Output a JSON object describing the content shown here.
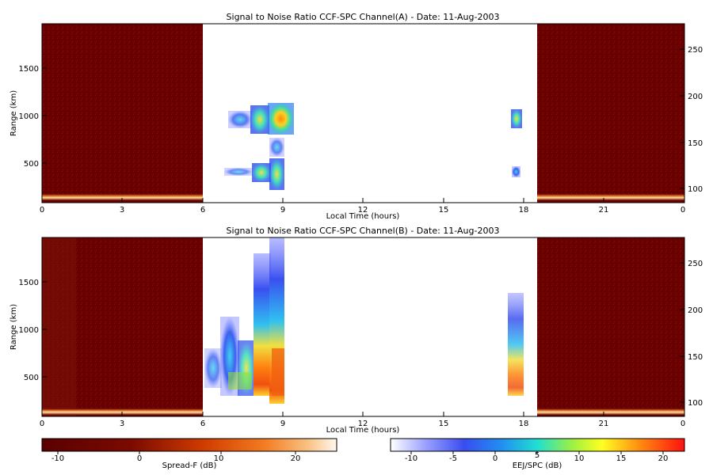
{
  "panels": [
    {
      "id": "A",
      "title": "Signal to Noise Ratio CCF-SPC Channel(A) - Date: 11-Aug-2003",
      "xlabel": "Local Time (hours)",
      "ylabel": "Range (km)",
      "x_ticks": [
        "0",
        "3",
        "6",
        "9",
        "12",
        "15",
        "18",
        "21",
        "0"
      ],
      "y_ticks_left": [
        "500",
        "1000",
        "1500"
      ],
      "y_ticks_right": [
        "100",
        "150",
        "200",
        "250"
      ]
    },
    {
      "id": "B",
      "title": "Signal to Noise Ratio CCF-SPC Channel(B) - Date: 11-Aug-2003",
      "xlabel": "Local Time (hours)",
      "ylabel": "Range (km)",
      "x_ticks": [
        "0",
        "3",
        "6",
        "9",
        "12",
        "15",
        "18",
        "21",
        "0"
      ],
      "y_ticks_left": [
        "500",
        "1000",
        "1500"
      ],
      "y_ticks_right": [
        "100",
        "150",
        "200",
        "250"
      ]
    }
  ],
  "colorbars": [
    {
      "label": "Spread-F (dB)",
      "ticks": [
        "-10",
        "0",
        "10",
        "20"
      ],
      "range": [
        -13,
        23
      ]
    },
    {
      "label": "EEJ/SPC (dB)",
      "ticks": [
        "-10",
        "-5",
        "0",
        "5",
        "10",
        "15",
        "20"
      ],
      "range": [
        -13,
        22
      ]
    }
  ],
  "chart_data": [
    {
      "type": "heatmap",
      "title": "Signal to Noise Ratio CCF-SPC Channel(A) - Date: 11-Aug-2003",
      "xlabel": "Local Time (hours)",
      "ylabel": "Range (km)",
      "xlim": [
        0,
        24
      ],
      "ylim_left": [
        70,
        1960
      ],
      "ylim_right": [
        87,
        280
      ],
      "x_tick_labels": [
        "0",
        "3",
        "6",
        "9",
        "12",
        "15",
        "18",
        "21",
        "0"
      ],
      "nighttime_spread_f_hours": [
        [
          0,
          6
        ],
        [
          18.5,
          24
        ]
      ],
      "echo_regions": [
        {
          "t_start": 6.9,
          "t_end": 9.4,
          "range_from_km": 750,
          "range_to_km": 1150,
          "peak_snr_db": 14
        },
        {
          "t_start": 6.9,
          "t_end": 9.0,
          "range_from_km": 250,
          "range_to_km": 650,
          "peak_snr_db": 7
        },
        {
          "t_start": 17.7,
          "t_end": 17.9,
          "range_from_km": 900,
          "range_to_km": 1050,
          "peak_snr_db": 5
        },
        {
          "t_start": 17.7,
          "t_end": 17.9,
          "range_from_km": 330,
          "range_to_km": 430,
          "peak_snr_db": 0
        }
      ],
      "colorbar": "EEJ/SPC (dB)"
    },
    {
      "type": "heatmap",
      "title": "Signal to Noise Ratio CCF-SPC Channel(B) - Date: 11-Aug-2003",
      "xlabel": "Local Time (hours)",
      "ylabel": "Range (km)",
      "xlim": [
        0,
        24
      ],
      "ylim_left": [
        70,
        1960
      ],
      "ylim_right": [
        87,
        280
      ],
      "x_tick_labels": [
        "0",
        "3",
        "6",
        "9",
        "12",
        "15",
        "18",
        "21",
        "0"
      ],
      "nighttime_spread_f_hours": [
        [
          0,
          6
        ],
        [
          18.5,
          24
        ]
      ],
      "echo_regions": [
        {
          "t_start": 6.1,
          "t_end": 7.8,
          "range_from_km": 250,
          "range_to_km": 1100,
          "peak_snr_db": 3
        },
        {
          "t_start": 7.8,
          "t_end": 8.3,
          "range_from_km": 250,
          "range_to_km": 1700,
          "peak_snr_db": 8
        },
        {
          "t_start": 8.3,
          "t_end": 9.0,
          "range_from_km": 220,
          "range_to_km": 1950,
          "peak_snr_db": 16
        },
        {
          "t_start": 17.6,
          "t_end": 18.3,
          "range_from_km": 300,
          "range_to_km": 1400,
          "peak_snr_db": 5
        }
      ],
      "colorbar": "EEJ/SPC (dB)"
    }
  ]
}
